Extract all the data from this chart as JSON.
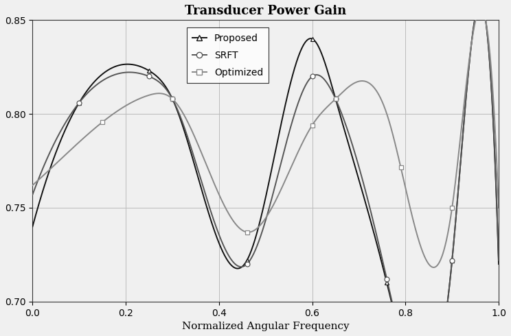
{
  "title": "Transducer Power Gain",
  "xlabel": "Normalized Angular Frequency",
  "ylabel": "",
  "xlim": [
    0,
    1
  ],
  "ylim": [
    0.7,
    0.85
  ],
  "yticks": [
    0.7,
    0.75,
    0.8,
    0.85
  ],
  "xticks": [
    0,
    0.2,
    0.4,
    0.6,
    0.8,
    1.0
  ],
  "grid_color": "#bbbbbb",
  "bg_color": "#f0f0f0",
  "line_color_proposed": "#111111",
  "line_color_srft": "#555555",
  "line_color_optimized": "#888888",
  "marker_proposed": "^",
  "marker_srft": "o",
  "marker_optimized": "s",
  "legend_labels": [
    "Proposed",
    "SRFT",
    "Optimized"
  ],
  "lw": 1.4,
  "ms": 5
}
